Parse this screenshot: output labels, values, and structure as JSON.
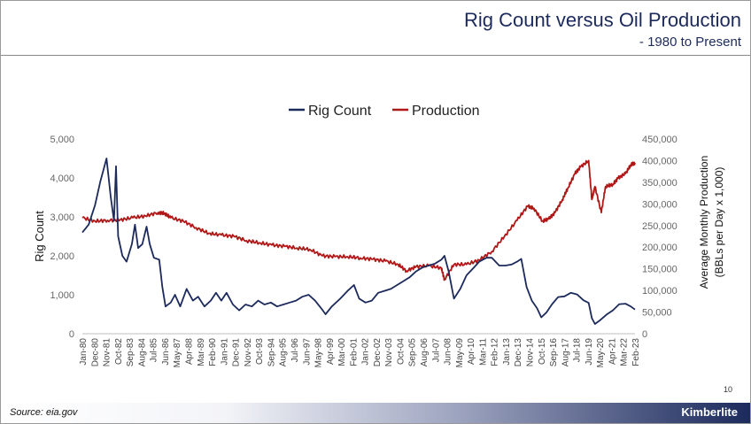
{
  "header": {
    "title": "Rig Count versus Oil Production",
    "subtitle": "- 1980 to Present"
  },
  "footer": {
    "source": "Source: eia.gov",
    "brand": "Kimberlite",
    "page_number": "10"
  },
  "colors": {
    "rig_count": "#1c2a5c",
    "production": "#b01818",
    "title": "#1c2a5c"
  },
  "chart_data": {
    "type": "line",
    "title": "",
    "xlabel": "",
    "ylabel": "Rig Count",
    "y2label_line1": "Average  Monthly Production",
    "y2label_line2": "(BBLs per Day x 1,000)",
    "ylim": [
      0,
      5000
    ],
    "y2lim": [
      0,
      450000
    ],
    "y_ticks": [
      "0",
      "1,000",
      "2,000",
      "3,000",
      "4,000",
      "5,000"
    ],
    "y2_ticks": [
      "0",
      "50,000",
      "100,000",
      "150,000",
      "200,000",
      "250,000",
      "300,000",
      "350,000",
      "400,000",
      "450,000"
    ],
    "legend_position": "top",
    "grid": false,
    "x_tick_labels": [
      "Jan-80",
      "Dec-80",
      "Nov-81",
      "Oct-82",
      "Sep-83",
      "Aug-84",
      "Jul-85",
      "Jun-86",
      "May-87",
      "Apr-88",
      "Mar-89",
      "Feb-90",
      "Jan-91",
      "Dec-91",
      "Nov-92",
      "Oct-93",
      "Sep-94",
      "Aug-95",
      "Jul-96",
      "Jun-97",
      "May-98",
      "Apr-99",
      "Mar-00",
      "Feb-01",
      "Jan-02",
      "Dec-02",
      "Nov-03",
      "Oct-04",
      "Sep-05",
      "Aug-06",
      "Jul-07",
      "Jun-08",
      "May-09",
      "Apr-10",
      "Mar-11",
      "Feb-12",
      "Jan-13",
      "Dec-13",
      "Nov-14",
      "Oct-15",
      "Sep-16",
      "Aug-17",
      "Jul-18",
      "Jun-19",
      "May-20",
      "Apr-21",
      "Mar-22",
      "Feb-23"
    ],
    "series": [
      {
        "name": "Rig Count",
        "axis": "left",
        "points": [
          [
            "1980-01",
            2600
          ],
          [
            "1980-07",
            2800
          ],
          [
            "1981-01",
            3300
          ],
          [
            "1981-06",
            3900
          ],
          [
            "1981-12",
            4500
          ],
          [
            "1982-04",
            3500
          ],
          [
            "1982-07",
            2900
          ],
          [
            "1982-09",
            4300
          ],
          [
            "1982-11",
            2500
          ],
          [
            "1983-03",
            2000
          ],
          [
            "1983-07",
            1850
          ],
          [
            "1983-12",
            2300
          ],
          [
            "1984-03",
            2800
          ],
          [
            "1984-06",
            2200
          ],
          [
            "1984-10",
            2300
          ],
          [
            "1985-02",
            2750
          ],
          [
            "1985-05",
            2300
          ],
          [
            "1985-09",
            1950
          ],
          [
            "1986-02",
            1900
          ],
          [
            "1986-05",
            1200
          ],
          [
            "1986-08",
            700
          ],
          [
            "1987-01",
            800
          ],
          [
            "1987-05",
            1000
          ],
          [
            "1987-10",
            700
          ],
          [
            "1988-04",
            1150
          ],
          [
            "1988-10",
            850
          ],
          [
            "1989-03",
            950
          ],
          [
            "1989-09",
            700
          ],
          [
            "1990-03",
            850
          ],
          [
            "1990-08",
            1050
          ],
          [
            "1991-01",
            850
          ],
          [
            "1991-06",
            1050
          ],
          [
            "1991-12",
            750
          ],
          [
            "1992-06",
            600
          ],
          [
            "1992-12",
            750
          ],
          [
            "1993-06",
            700
          ],
          [
            "1993-12",
            850
          ],
          [
            "1994-06",
            750
          ],
          [
            "1994-12",
            800
          ],
          [
            "1995-06",
            700
          ],
          [
            "1995-12",
            750
          ],
          [
            "1996-06",
            800
          ],
          [
            "1996-12",
            850
          ],
          [
            "1997-06",
            950
          ],
          [
            "1997-12",
            1000
          ],
          [
            "1998-06",
            850
          ],
          [
            "1998-12",
            650
          ],
          [
            "1999-04",
            500
          ],
          [
            "1999-10",
            700
          ],
          [
            "2000-06",
            900
          ],
          [
            "2001-01",
            1100
          ],
          [
            "2001-07",
            1250
          ],
          [
            "2001-12",
            900
          ],
          [
            "2002-06",
            800
          ],
          [
            "2002-12",
            850
          ],
          [
            "2003-06",
            1050
          ],
          [
            "2003-12",
            1100
          ],
          [
            "2004-06",
            1150
          ],
          [
            "2004-12",
            1250
          ],
          [
            "2005-06",
            1350
          ],
          [
            "2005-12",
            1450
          ],
          [
            "2006-06",
            1600
          ],
          [
            "2006-12",
            1700
          ],
          [
            "2007-06",
            1750
          ],
          [
            "2007-12",
            1800
          ],
          [
            "2008-06",
            1900
          ],
          [
            "2008-09",
            2000
          ],
          [
            "2009-01",
            1600
          ],
          [
            "2009-06",
            900
          ],
          [
            "2009-12",
            1150
          ],
          [
            "2010-06",
            1500
          ],
          [
            "2011-01",
            1700
          ],
          [
            "2011-06",
            1850
          ],
          [
            "2012-01",
            1950
          ],
          [
            "2012-06",
            1950
          ],
          [
            "2013-01",
            1750
          ],
          [
            "2013-07",
            1750
          ],
          [
            "2014-01",
            1780
          ],
          [
            "2014-06",
            1850
          ],
          [
            "2014-10",
            1920
          ],
          [
            "2015-03",
            1200
          ],
          [
            "2015-08",
            850
          ],
          [
            "2016-01",
            650
          ],
          [
            "2016-05",
            420
          ],
          [
            "2016-10",
            550
          ],
          [
            "2017-03",
            750
          ],
          [
            "2017-09",
            940
          ],
          [
            "2018-03",
            960
          ],
          [
            "2018-09",
            1050
          ],
          [
            "2019-03",
            1010
          ],
          [
            "2019-09",
            860
          ],
          [
            "2020-02",
            790
          ],
          [
            "2020-05",
            400
          ],
          [
            "2020-08",
            250
          ],
          [
            "2021-01",
            350
          ],
          [
            "2021-07",
            490
          ],
          [
            "2022-01",
            600
          ],
          [
            "2022-07",
            760
          ],
          [
            "2023-01",
            770
          ],
          [
            "2023-06",
            700
          ],
          [
            "2023-10",
            620
          ]
        ]
      },
      {
        "name": "Production",
        "axis": "right",
        "points": [
          [
            "1980-01",
            268000
          ],
          [
            "1981-01",
            260000
          ],
          [
            "1982-01",
            262000
          ],
          [
            "1983-01",
            263000
          ],
          [
            "1984-01",
            268000
          ],
          [
            "1985-01",
            272000
          ],
          [
            "1986-01",
            280000
          ],
          [
            "1986-07",
            278000
          ],
          [
            "1987-01",
            268000
          ],
          [
            "1988-01",
            260000
          ],
          [
            "1989-01",
            245000
          ],
          [
            "1990-01",
            232000
          ],
          [
            "1991-01",
            228000
          ],
          [
            "1992-01",
            225000
          ],
          [
            "1993-01",
            215000
          ],
          [
            "1994-01",
            210000
          ],
          [
            "1995-01",
            205000
          ],
          [
            "1996-01",
            202000
          ],
          [
            "1997-01",
            198000
          ],
          [
            "1998-01",
            195000
          ],
          [
            "1999-01",
            180000
          ],
          [
            "2000-01",
            178000
          ],
          [
            "2001-01",
            178000
          ],
          [
            "2002-01",
            175000
          ],
          [
            "2003-01",
            172000
          ],
          [
            "2004-01",
            168000
          ],
          [
            "2005-01",
            160000
          ],
          [
            "2005-09",
            145000
          ],
          [
            "2006-06",
            155000
          ],
          [
            "2007-06",
            157000
          ],
          [
            "2008-06",
            152000
          ],
          [
            "2008-09",
            125000
          ],
          [
            "2009-06",
            160000
          ],
          [
            "2010-06",
            160000
          ],
          [
            "2011-06",
            170000
          ],
          [
            "2012-06",
            190000
          ],
          [
            "2013-06",
            225000
          ],
          [
            "2014-06",
            262000
          ],
          [
            "2015-04",
            295000
          ],
          [
            "2015-10",
            290000
          ],
          [
            "2016-06",
            260000
          ],
          [
            "2016-12",
            265000
          ],
          [
            "2017-06",
            280000
          ],
          [
            "2018-01",
            310000
          ],
          [
            "2018-06",
            335000
          ],
          [
            "2019-01",
            370000
          ],
          [
            "2019-06",
            385000
          ],
          [
            "2020-02",
            400000
          ],
          [
            "2020-05",
            310000
          ],
          [
            "2020-08",
            340000
          ],
          [
            "2021-02",
            280000
          ],
          [
            "2021-06",
            340000
          ],
          [
            "2022-01",
            345000
          ],
          [
            "2022-06",
            360000
          ],
          [
            "2023-01",
            370000
          ],
          [
            "2023-06",
            390000
          ],
          [
            "2023-10",
            395000
          ]
        ]
      }
    ]
  }
}
